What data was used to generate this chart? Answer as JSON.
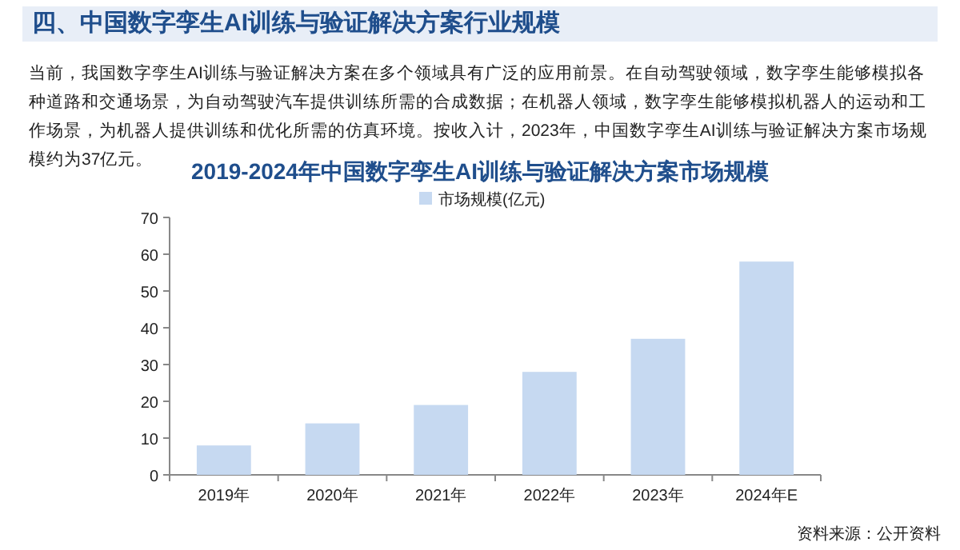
{
  "chart_data": {
    "type": "bar",
    "title": "2019-2024年中国数字孪生AI训练与验证解决方案市场规模",
    "annotations": [
      "四、中国数字孪生AI训练与验证解决方案行业规模",
      "当前，我国数字孪生AI训练与验证解决方案在多个领域具有广泛的应用前景。在自动驾驶领域，数字孪生能够模拟各种道路和交通场景，为自动驾驶汽车提供训练所需的合成数据；在机器人领域，数字孪生能够模拟机器人的运动和工作场景，为机器人提供训练和优化所需的仿真环境。按收入计，2023年，中国数字孪生AI训练与验证解决方案市场规模约为37亿元。",
      "资料来源：公开资料"
    ],
    "categories": [
      "2019年",
      "2020年",
      "2021年",
      "2022年",
      "2023年",
      "2024年E"
    ],
    "series": [
      {
        "name": "市场规模(亿元)",
        "color": "#c6d9f1",
        "values": [
          8,
          14,
          19,
          28,
          37,
          58
        ]
      }
    ],
    "ylim": [
      0,
      70
    ],
    "yticks": [
      0,
      10,
      20,
      30,
      40,
      50,
      60,
      70
    ],
    "grid": false,
    "legend": "top"
  }
}
